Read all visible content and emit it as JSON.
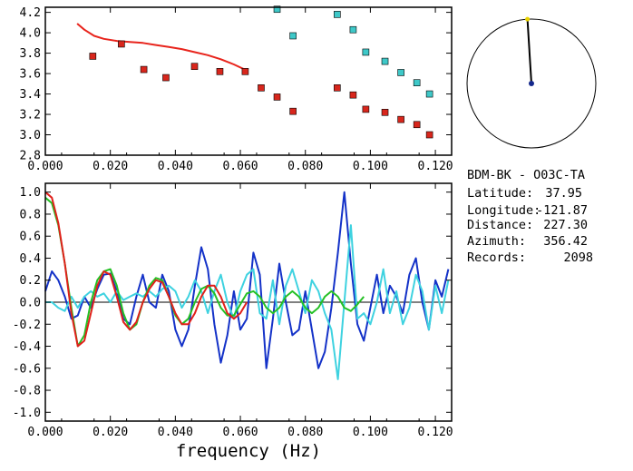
{
  "chart_data": [
    {
      "type": "scatter",
      "panel": "top",
      "xlim": [
        0.0,
        0.125
      ],
      "ylim": [
        2.8,
        4.25
      ],
      "xticks": [
        "0.000",
        "0.020",
        "0.040",
        "0.060",
        "0.080",
        "0.100",
        "0.120"
      ],
      "yticks": [
        "2.8",
        "3.0",
        "3.2",
        "3.4",
        "3.6",
        "3.8",
        "4.0",
        "4.2"
      ],
      "xtick_values": [
        0.0,
        0.02,
        0.04,
        0.06,
        0.08,
        0.1,
        0.12
      ],
      "ytick_values": [
        2.8,
        3.0,
        3.2,
        3.4,
        3.6,
        3.8,
        4.0,
        4.2
      ],
      "series": [
        {
          "kind": "line",
          "color": "#e8241c",
          "x": [
            0.0098,
            0.012,
            0.015,
            0.018,
            0.022,
            0.026,
            0.03,
            0.034,
            0.038,
            0.042,
            0.046,
            0.05,
            0.054,
            0.058,
            0.062
          ],
          "y": [
            4.09,
            4.03,
            3.97,
            3.94,
            3.92,
            3.91,
            3.9,
            3.88,
            3.86,
            3.84,
            3.81,
            3.78,
            3.74,
            3.69,
            3.63
          ]
        },
        {
          "kind": "markers",
          "color": "#d8261c",
          "x": [
            0.0146,
            0.0234,
            0.0303,
            0.0371,
            0.0459,
            0.0537,
            0.0615,
            0.0664,
            0.0713,
            0.0762,
            0.0898,
            0.0947,
            0.0986,
            0.1045,
            0.1094,
            0.1143,
            0.1182
          ],
          "y": [
            3.77,
            3.89,
            3.64,
            3.56,
            3.67,
            3.62,
            3.62,
            3.46,
            3.37,
            3.23,
            3.46,
            3.39,
            3.25,
            3.22,
            3.15,
            3.1,
            3.0
          ]
        },
        {
          "kind": "markers",
          "color": "#3ec8c8",
          "x": [
            0.0713,
            0.0762,
            0.0898,
            0.0947,
            0.0986,
            0.1045,
            0.1094,
            0.1143,
            0.1182
          ],
          "y": [
            4.23,
            3.97,
            4.18,
            4.03,
            3.81,
            3.72,
            3.61,
            3.51,
            3.4
          ]
        }
      ]
    },
    {
      "type": "line",
      "panel": "bottom",
      "xlim": [
        0.0,
        0.125
      ],
      "ylim": [
        -1.08,
        1.08
      ],
      "xlabel": "frequency (Hz)",
      "xticks": [
        "0.000",
        "0.020",
        "0.040",
        "0.060",
        "0.080",
        "0.100",
        "0.120"
      ],
      "yticks": [
        "1.0",
        "0.8",
        "0.6",
        "0.4",
        "0.2",
        "0.0",
        "-0.2",
        "-0.4",
        "-0.6",
        "-0.8",
        "-1.0"
      ],
      "xtick_values": [
        0.0,
        0.02,
        0.04,
        0.06,
        0.08,
        0.1,
        0.12
      ],
      "ytick_values": [
        1.0,
        0.8,
        0.6,
        0.4,
        0.2,
        0.0,
        -0.2,
        -0.4,
        -0.6,
        -0.8,
        -1.0
      ],
      "zero_line": true,
      "series": [
        {
          "color": "#1432c8",
          "x": [
            0.0,
            0.002,
            0.004,
            0.006,
            0.008,
            0.01,
            0.012,
            0.014,
            0.016,
            0.018,
            0.02,
            0.022,
            0.024,
            0.026,
            0.028,
            0.03,
            0.032,
            0.034,
            0.036,
            0.038,
            0.04,
            0.042,
            0.044,
            0.046,
            0.048,
            0.05,
            0.052,
            0.054,
            0.056,
            0.058,
            0.06,
            0.062,
            0.064,
            0.066,
            0.068,
            0.07,
            0.072,
            0.074,
            0.076,
            0.078,
            0.08,
            0.082,
            0.084,
            0.086,
            0.088,
            0.09,
            0.092,
            0.094,
            0.096,
            0.098,
            0.1,
            0.102,
            0.104,
            0.106,
            0.108,
            0.11,
            0.112,
            0.114,
            0.116,
            0.118,
            0.12,
            0.122,
            0.124
          ],
          "y": [
            0.1,
            0.28,
            0.2,
            0.05,
            -0.15,
            -0.12,
            0.05,
            -0.05,
            0.12,
            0.25,
            0.26,
            0.1,
            -0.15,
            -0.2,
            0.05,
            0.25,
            0.0,
            -0.05,
            0.25,
            0.1,
            -0.25,
            -0.4,
            -0.25,
            0.15,
            0.5,
            0.3,
            -0.2,
            -0.55,
            -0.3,
            0.1,
            -0.25,
            -0.15,
            0.45,
            0.25,
            -0.6,
            -0.15,
            0.35,
            0.0,
            -0.3,
            -0.25,
            0.1,
            -0.25,
            -0.6,
            -0.45,
            -0.05,
            0.45,
            1.0,
            0.35,
            -0.2,
            -0.35,
            -0.05,
            0.25,
            -0.1,
            0.15,
            0.05,
            -0.1,
            0.25,
            0.4,
            0.0,
            -0.25,
            0.2,
            0.05,
            0.3
          ]
        },
        {
          "color": "#3ed2e0",
          "x": [
            0.0,
            0.002,
            0.004,
            0.006,
            0.008,
            0.01,
            0.012,
            0.014,
            0.016,
            0.018,
            0.02,
            0.022,
            0.024,
            0.026,
            0.028,
            0.03,
            0.032,
            0.034,
            0.036,
            0.038,
            0.04,
            0.042,
            0.044,
            0.046,
            0.048,
            0.05,
            0.052,
            0.054,
            0.056,
            0.058,
            0.06,
            0.062,
            0.064,
            0.066,
            0.068,
            0.07,
            0.072,
            0.074,
            0.076,
            0.078,
            0.08,
            0.082,
            0.084,
            0.086,
            0.088,
            0.09,
            0.092,
            0.094,
            0.096,
            0.098,
            0.1,
            0.102,
            0.104,
            0.106,
            0.108,
            0.11,
            0.112,
            0.114,
            0.116,
            0.118,
            0.12,
            0.122,
            0.124
          ],
          "y": [
            0.0,
            0.0,
            -0.05,
            -0.08,
            0.05,
            -0.05,
            0.05,
            0.1,
            0.05,
            0.08,
            0.0,
            0.1,
            0.02,
            0.05,
            0.08,
            0.05,
            0.1,
            0.05,
            0.12,
            0.15,
            0.1,
            -0.05,
            0.05,
            0.2,
            0.1,
            -0.1,
            0.1,
            0.25,
            0.0,
            -0.15,
            0.1,
            0.25,
            0.3,
            -0.1,
            -0.15,
            0.2,
            -0.2,
            0.15,
            0.3,
            0.1,
            -0.1,
            0.2,
            0.1,
            -0.1,
            -0.25,
            -0.7,
            0.0,
            0.7,
            -0.15,
            -0.1,
            -0.2,
            0.0,
            0.3,
            -0.1,
            0.1,
            -0.2,
            -0.05,
            0.25,
            0.1,
            -0.25,
            0.15,
            -0.1,
            0.2
          ]
        },
        {
          "color": "#24c024",
          "x": [
            0.0,
            0.002,
            0.004,
            0.006,
            0.008,
            0.01,
            0.012,
            0.014,
            0.016,
            0.018,
            0.02,
            0.022,
            0.024,
            0.026,
            0.028,
            0.03,
            0.032,
            0.034,
            0.036,
            0.038,
            0.04,
            0.042,
            0.044,
            0.046,
            0.048,
            0.05,
            0.052,
            0.054,
            0.056,
            0.058,
            0.06,
            0.062,
            0.064,
            0.066,
            0.068,
            0.07,
            0.072,
            0.074,
            0.076,
            0.078,
            0.08,
            0.082,
            0.084,
            0.086,
            0.088,
            0.09,
            0.092,
            0.094,
            0.096,
            0.098
          ],
          "y": [
            0.95,
            0.9,
            0.7,
            0.35,
            -0.05,
            -0.4,
            -0.3,
            0.0,
            0.2,
            0.28,
            0.3,
            0.15,
            -0.1,
            -0.25,
            -0.2,
            0.0,
            0.15,
            0.22,
            0.2,
            0.05,
            -0.12,
            -0.2,
            -0.15,
            0.0,
            0.12,
            0.15,
            0.08,
            -0.05,
            -0.12,
            -0.12,
            -0.02,
            0.08,
            0.1,
            0.05,
            -0.05,
            -0.1,
            -0.05,
            0.05,
            0.1,
            0.05,
            -0.05,
            -0.1,
            -0.05,
            0.05,
            0.1,
            0.05,
            -0.05,
            -0.08,
            -0.02,
            0.05
          ]
        },
        {
          "color": "#e0201a",
          "x": [
            0.0,
            0.002,
            0.004,
            0.006,
            0.008,
            0.01,
            0.012,
            0.014,
            0.016,
            0.018,
            0.02,
            0.022,
            0.024,
            0.026,
            0.028,
            0.03,
            0.032,
            0.034,
            0.036,
            0.038,
            0.04,
            0.042,
            0.044,
            0.046,
            0.048,
            0.05,
            0.052,
            0.054,
            0.056,
            0.058,
            0.06,
            0.062
          ],
          "y": [
            1.0,
            0.95,
            0.72,
            0.35,
            -0.1,
            -0.4,
            -0.35,
            -0.1,
            0.15,
            0.28,
            0.25,
            0.05,
            -0.18,
            -0.25,
            -0.18,
            0.0,
            0.12,
            0.2,
            0.18,
            0.05,
            -0.1,
            -0.2,
            -0.2,
            -0.1,
            0.05,
            0.15,
            0.15,
            0.05,
            -0.1,
            -0.15,
            -0.1,
            0.0
          ]
        }
      ]
    }
  ],
  "azimuth_dial": {
    "azimuth_deg": 356.42,
    "ring_color": "#000000",
    "needle_color": "#000000",
    "tip_color": "#e8d200",
    "center_color": "#14288c"
  },
  "station_info": {
    "title": "BDM-BK - O03C-TA",
    "latitude_label": "Latitude:",
    "latitude_value": "37.95",
    "longitude_label": "Longitude:",
    "longitude_value": "-121.87",
    "distance_label": "Distance:",
    "distance_value": "227.30",
    "azimuth_label": "Azimuth:",
    "azimuth_value": "356.42",
    "records_label": "Records:",
    "records_value": "2098"
  }
}
